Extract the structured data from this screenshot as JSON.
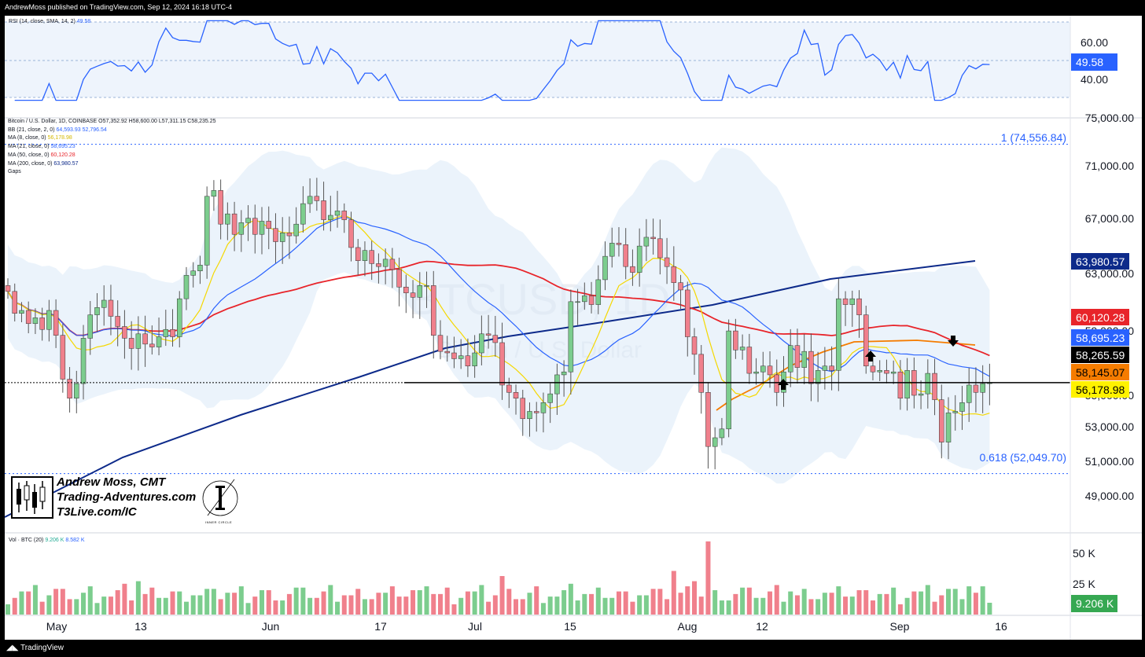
{
  "header": {
    "published": "AndrewMoss published on TradingView.com, Sep 12, 2024 16:18 UTC-4"
  },
  "footer": {
    "brand": "TradingView"
  },
  "rsi": {
    "legend": "RSI (14, close, SMA, 14, 2)",
    "value": "49.58",
    "levels": [
      "60.00",
      "40.00"
    ],
    "color": "#2962ff"
  },
  "price_legend": {
    "symbol": "Bitcoin / U.S. Dollar, 1D, COINBASE",
    "ohlc": "O57,352.92 H58,600.00 L57,311.15 C58,235.25",
    "bb": {
      "label": "BB (21, close, 2, 0)",
      "v1": "64,593.93",
      "v2": "52,796.54"
    },
    "ma8": {
      "label": "MA (8, close, 0)",
      "value": "56,178.98"
    },
    "ma21": {
      "label": "MA (21, close, 0)",
      "value": "58,695.23"
    },
    "ma50": {
      "label": "MA (50, close, 0)",
      "value": "60,120.28"
    },
    "ma200": {
      "label": "MA (200, close, 0)",
      "value": "63,980.57"
    },
    "gaps": "Gaps"
  },
  "watermark": {
    "symbol": "BTCUSD, 1D",
    "name": "Bitcoin / U.S. Dollar"
  },
  "fib": {
    "top": "1 (74,556.84)",
    "bottom": "0.618 (52,049.70)"
  },
  "price_axis": [
    "75,000.00",
    "71,000.00",
    "67,000.00",
    "63,000.00",
    "59,000.00",
    "55,000.00",
    "53,000.00",
    "51,000.00",
    "49,000.00"
  ],
  "price_tags": [
    {
      "text": "63,980.57",
      "bg": "#0d2a8a",
      "fg": "#ffffff"
    },
    {
      "text": "60,120.28",
      "bg": "#e8242a",
      "fg": "#ffffff"
    },
    {
      "text": "58,695.23",
      "bg": "#2962ff",
      "fg": "#ffffff"
    },
    {
      "text": "58,265.59",
      "bg": "#000000",
      "fg": "#ffffff"
    },
    {
      "text": "58,145.07",
      "bg": "#f57c00",
      "fg": "#000000"
    },
    {
      "text": "56,178.98",
      "bg": "#fff200",
      "fg": "#000000"
    }
  ],
  "logo": {
    "line1": "Andrew Moss, CMT",
    "line2": "Trading-Adventures.com",
    "line3": "T3Live.com/IC",
    "badge": "INNER CIRCLE"
  },
  "volume": {
    "legend": "Vol · BTC (20)",
    "v1": "9.206 K",
    "v2": "8.582 K",
    "axis": [
      "50 K",
      "25 K"
    ],
    "tag": "9.206 K"
  },
  "time_axis": [
    "May",
    "13",
    "Jun",
    "17",
    "Jul",
    "15",
    "Aug",
    "12",
    "Sep",
    "16"
  ],
  "colors": {
    "up": "#7ccd8e",
    "down": "#f0808c",
    "ma8": "#f5d800",
    "ma21": "#2962ff",
    "ma50": "#e8242a",
    "ma200": "#0d2a8a",
    "ema_orange": "#f57c00",
    "bb_fill": "#dbe9f8"
  },
  "chart_data": {
    "type": "candlestick",
    "title": "Bitcoin / U.S. Dollar, 1D, COINBASE",
    "ylim": [
      48000,
      76200
    ],
    "support_line": 58265.59,
    "fib_levels": [
      {
        "ratio": 1,
        "price": 74556.84
      },
      {
        "ratio": 0.618,
        "price": 52049.7
      }
    ],
    "closes": [
      64500,
      63000,
      63200,
      62300,
      62700,
      61900,
      63200,
      61500,
      58500,
      57200,
      58200,
      61300,
      62900,
      63400,
      63900,
      62800,
      62100,
      61300,
      60600,
      61600,
      60900,
      60700,
      61400,
      61900,
      61400,
      64000,
      65600,
      65900,
      66300,
      71000,
      71400,
      69100,
      69800,
      68400,
      69200,
      69500,
      68400,
      69300,
      68800,
      67900,
      68500,
      68300,
      69100,
      70500,
      71000,
      70700,
      69400,
      69700,
      70000,
      69400,
      67500,
      66600,
      67300,
      66400,
      66200,
      66700,
      66000,
      64800,
      64400,
      64100,
      64900,
      64900,
      61500,
      60400,
      60300,
      59900,
      60100,
      59400,
      60300,
      61600,
      61500,
      61000,
      58100,
      57600,
      57200,
      55800,
      56300,
      56200,
      56900,
      57500,
      58800,
      59000,
      63800,
      63800,
      64200,
      63600,
      65300,
      66900,
      67800,
      67700,
      66200,
      65800,
      67600,
      68200,
      68100,
      66800,
      66200,
      65100,
      64600,
      61400,
      60200,
      57600,
      53900,
      54500,
      55100,
      61800,
      60500,
      60700,
      58900,
      59000,
      59400,
      58800,
      57600,
      59000,
      60800,
      59300,
      60400,
      58200,
      59100,
      59400,
      59100,
      64000,
      63600,
      64000,
      62900,
      59400,
      59000,
      59100,
      58900,
      59000,
      57200,
      59100,
      57400,
      57500,
      58900,
      57100,
      54200,
      56200,
      56300,
      56900,
      58100,
      57600,
      58200,
      58265
    ],
    "ma8_end": 56178.98,
    "ma21_end": 58695.23,
    "ma50_end": 60120.28,
    "ma200_end": 63980.57,
    "bb_end": [
      64593.93,
      52796.54
    ],
    "rsi_last": 49.58,
    "volume_last_k": 9.206,
    "volume_ma_k": 8.582,
    "volume_ylim_k": [
      0,
      60
    ],
    "x_ticks": [
      "May",
      "13",
      "Jun",
      "17",
      "Jul",
      "15",
      "Aug",
      "12",
      "Sep",
      "16"
    ]
  }
}
